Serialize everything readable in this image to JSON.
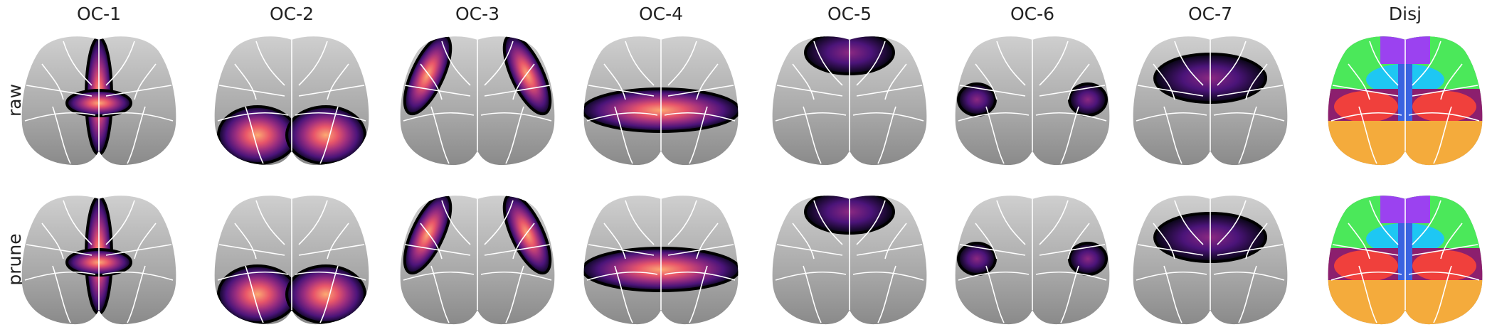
{
  "columns": [
    "OC-1",
    "OC-2",
    "OC-3",
    "OC-4",
    "OC-5",
    "OC-6",
    "OC-7",
    "Disj"
  ],
  "rows": [
    "raw",
    "prune"
  ]
}
